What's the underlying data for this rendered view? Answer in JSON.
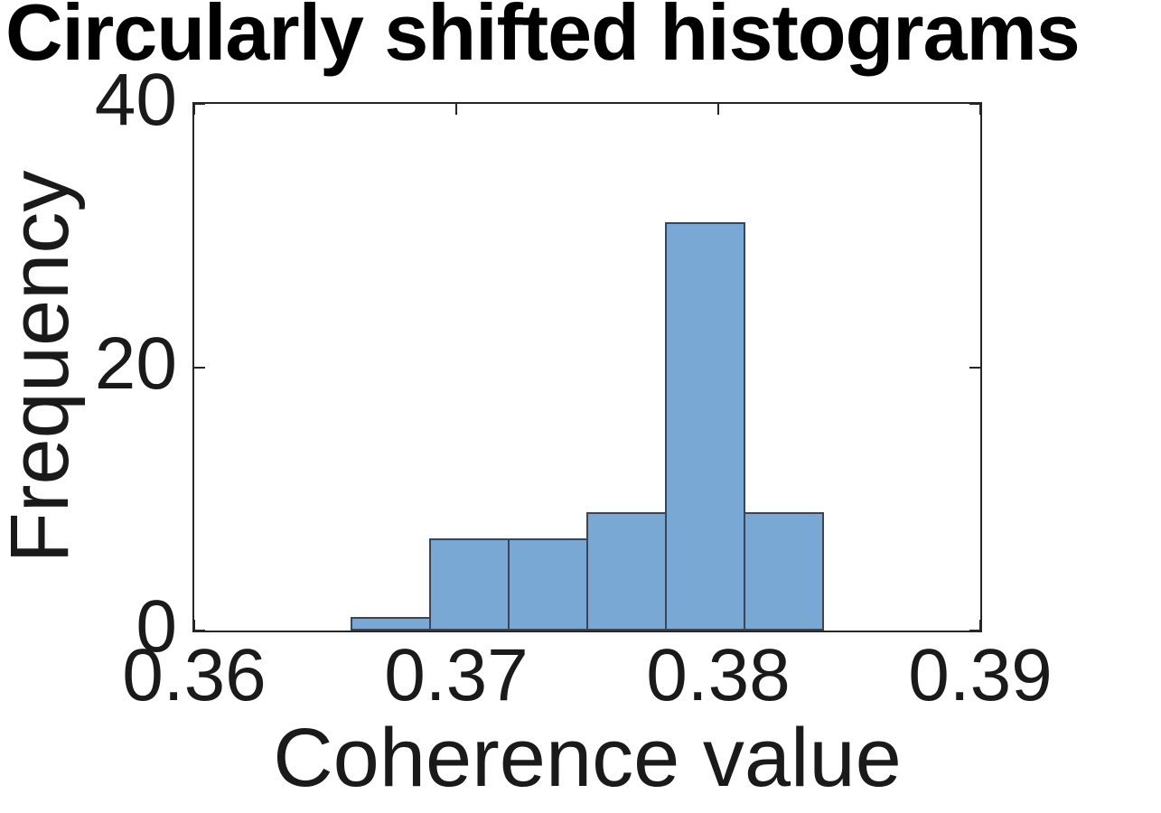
{
  "chart_data": {
    "type": "bar",
    "title": "Circularly shifted histograms",
    "xlabel": "Coherence value",
    "ylabel": "Frequency",
    "xlim": [
      0.36,
      0.39
    ],
    "ylim": [
      0,
      40
    ],
    "grid": false,
    "legend": "none",
    "box": true,
    "tick_direction": "in",
    "xticks": [
      {
        "value": 0.36,
        "label": "0.36"
      },
      {
        "value": 0.37,
        "label": "0.37"
      },
      {
        "value": 0.38,
        "label": "0.38"
      },
      {
        "value": 0.39,
        "label": "0.39"
      }
    ],
    "yticks": [
      {
        "value": 0,
        "label": "0"
      },
      {
        "value": 20,
        "label": "20"
      },
      {
        "value": 40,
        "label": "40"
      }
    ],
    "bin_edges": [
      0.366,
      0.369,
      0.372,
      0.375,
      0.378,
      0.381,
      0.384
    ],
    "frequencies": [
      1,
      7,
      7,
      9,
      31,
      9
    ],
    "colors": {
      "bar_fill": "#7AA8D4",
      "bar_edge": "#3A4656",
      "axis": "#262626",
      "text": "#1a1a1a",
      "title_text": "#000000",
      "background": "#ffffff"
    }
  }
}
